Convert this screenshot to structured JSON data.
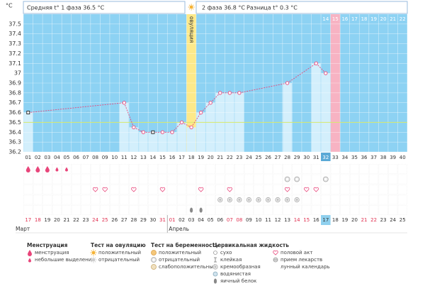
{
  "chart_data": {
    "type": "line",
    "y_unit": "°C",
    "header": {
      "phase1": "Средняя t° 1 фаза 36.5 °C",
      "phase2": "2 фаза 36.8 °C",
      "difference": "Разница t° 0.3 °C"
    },
    "ovulation_label": "овуляция",
    "ovulation_index": 17,
    "expected_period_index": 32,
    "current_day_index": 31,
    "categories": [
      "01",
      "02",
      "03",
      "04",
      "05",
      "06",
      "07",
      "08",
      "09",
      "10",
      "11",
      "12",
      "13",
      "14",
      "15",
      "16",
      "17",
      "18",
      "19",
      "20",
      "21",
      "22",
      "23",
      "24",
      "25",
      "26",
      "27",
      "28",
      "29",
      "30",
      "31",
      "32",
      "33",
      "34",
      "35",
      "36",
      "37",
      "38",
      "39",
      "40"
    ],
    "days_after_ovulation": [
      null,
      null,
      null,
      null,
      null,
      null,
      null,
      null,
      null,
      null,
      null,
      null,
      null,
      null,
      null,
      null,
      null,
      null,
      null,
      null,
      null,
      null,
      null,
      null,
      null,
      null,
      null,
      null,
      null,
      null,
      null,
      "14",
      "15",
      "16",
      "17",
      "18",
      "19",
      "20",
      "21",
      "22"
    ],
    "dates": [
      "17",
      "18",
      "19",
      "20",
      "21",
      "22",
      "23",
      "24",
      "25",
      "26",
      "27",
      "28",
      "29",
      "30",
      "31",
      "01",
      "02",
      "03",
      "04",
      "05",
      "06",
      "07",
      "08",
      "09",
      "10",
      "11",
      "12",
      "13",
      "14",
      "15",
      "16",
      "17",
      "18",
      "19",
      "20",
      "21",
      "22",
      "23",
      "24",
      "25"
    ],
    "weekend": [
      true,
      true,
      false,
      false,
      false,
      false,
      false,
      true,
      true,
      false,
      false,
      false,
      false,
      false,
      true,
      true,
      false,
      false,
      false,
      false,
      false,
      true,
      true,
      false,
      false,
      false,
      false,
      false,
      true,
      true,
      false,
      false,
      false,
      false,
      false,
      true,
      true,
      false,
      false,
      false
    ],
    "months": [
      {
        "label": "Март",
        "index": 0
      },
      {
        "label": "Апрель",
        "index": 15
      }
    ],
    "values": [
      36.6,
      null,
      null,
      null,
      null,
      null,
      null,
      null,
      null,
      null,
      36.7,
      36.45,
      36.4,
      36.4,
      36.4,
      36.4,
      36.5,
      36.45,
      36.6,
      36.7,
      36.8,
      36.8,
      36.8,
      null,
      null,
      null,
      null,
      36.9,
      null,
      null,
      37.1,
      37.0,
      null,
      null,
      null,
      null,
      null,
      null,
      null,
      null
    ],
    "square_points": [
      0,
      13
    ],
    "color": "#e8457a",
    "bar_color": "#d3effc",
    "background_color": "#8dd2f3",
    "cover_line": 36.5,
    "ylim": [
      36.2,
      37.6
    ],
    "yticks": [
      36.2,
      36.3,
      36.4,
      36.5,
      36.6,
      36.7,
      36.8,
      36.9,
      37.0,
      37.1,
      37.2,
      37.3,
      37.4,
      37.5
    ],
    "moon_index": 12,
    "rows": [
      [
        {
          "icon": "period",
          "days": [
            0,
            1,
            2
          ]
        },
        {
          "icon": "spotting",
          "days": [
            3,
            4
          ]
        }
      ],
      [
        {
          "icon": "preg-neg",
          "days": [
            27,
            28,
            31
          ]
        }
      ],
      [
        {
          "icon": "sex",
          "days": [
            7,
            8,
            11,
            14,
            18,
            21,
            27,
            29,
            30
          ]
        }
      ],
      [
        {
          "icon": "creamy",
          "days": [
            20,
            21,
            22,
            23,
            24,
            25,
            26,
            27,
            28
          ]
        }
      ],
      [
        {
          "icon": "egg",
          "days": [
            17,
            18
          ]
        }
      ]
    ],
    "legend": [
      {
        "title": "Менструация",
        "items": [
          {
            "icon": "period",
            "label": "менструация"
          },
          {
            "icon": "spotting",
            "label": "небольшие выделения"
          }
        ]
      },
      {
        "title": "Тест на овуляцию",
        "items": [
          {
            "icon": "sun",
            "label": "положительный"
          },
          {
            "icon": "sun-neg",
            "label": "отрицательный"
          }
        ]
      },
      {
        "title": "Тест на беременность",
        "items": [
          {
            "icon": "preg-pos",
            "label": "положительный"
          },
          {
            "icon": "preg-neg",
            "label": "отрицательный"
          },
          {
            "icon": "preg-weak",
            "label": "слабоположительный"
          }
        ]
      },
      {
        "title": "Цервикальная жидкость",
        "items": [
          {
            "icon": "dry",
            "label": "сухо"
          },
          {
            "icon": "sticky",
            "label": "клейкая"
          },
          {
            "icon": "creamy",
            "label": "кремообразная"
          },
          {
            "icon": "watery",
            "label": "водянистая"
          },
          {
            "icon": "egg",
            "label": "яичный белок"
          }
        ]
      },
      {
        "items": [
          {
            "icon": "sex",
            "label": "половой акт"
          },
          {
            "icon": "pill",
            "label": "прием лекарств"
          },
          {
            "icon": "moon",
            "label": "лунный календарь"
          }
        ]
      }
    ]
  }
}
